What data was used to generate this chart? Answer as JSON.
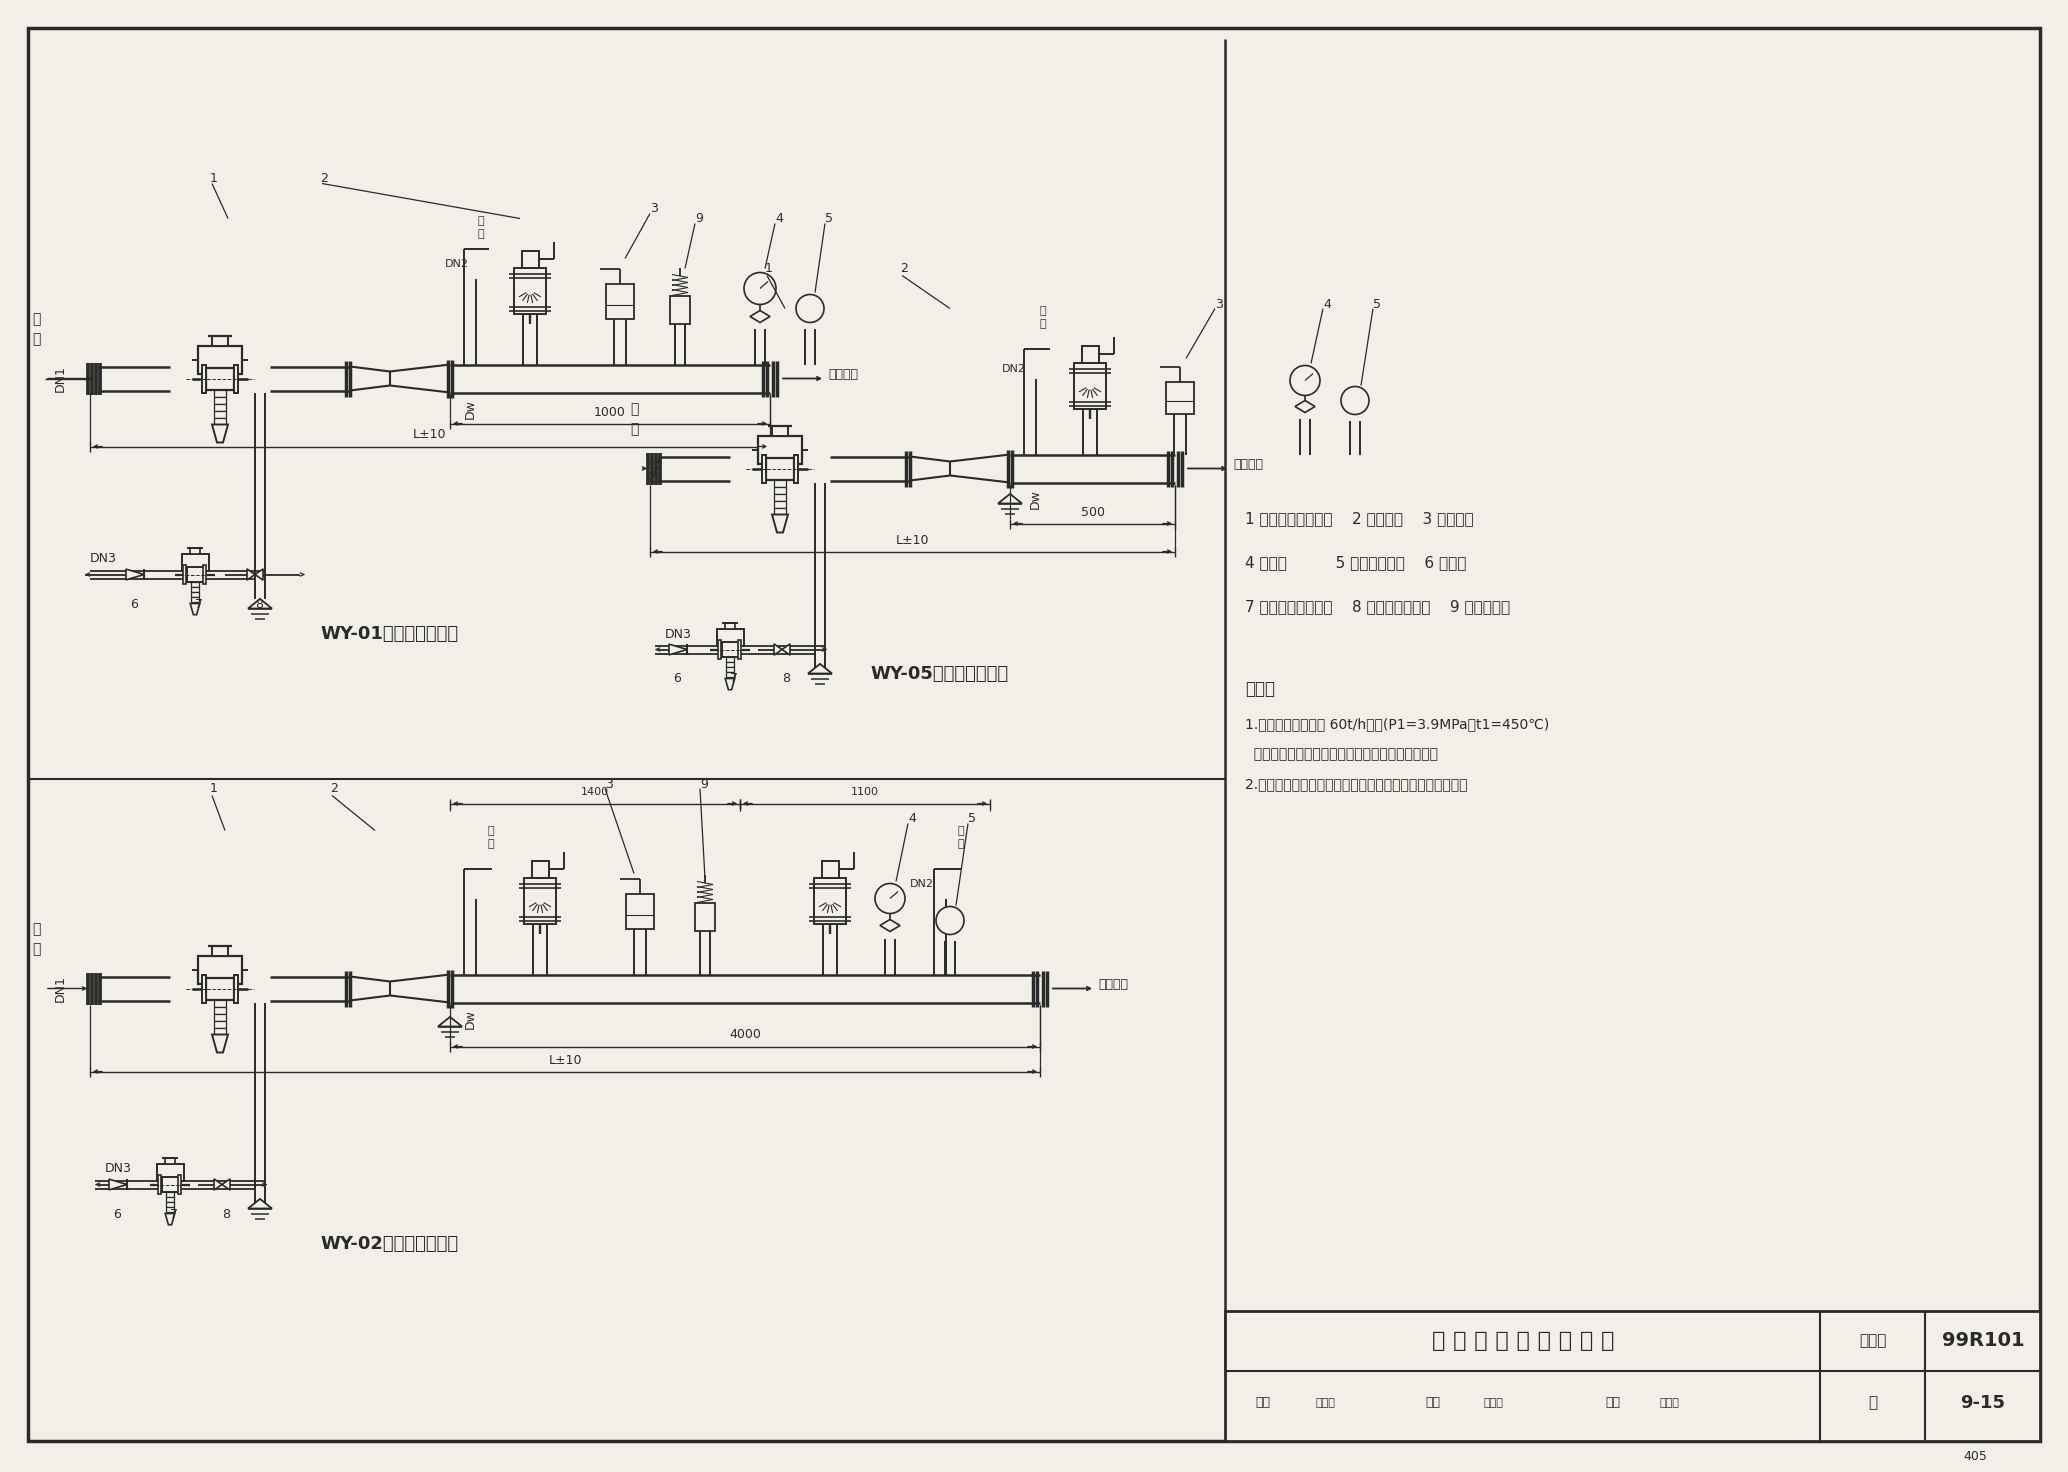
{
  "bg_color": "#f2efe9",
  "line_color": "#2a2a2a",
  "title_block": {
    "main_title": "减 温 减 压 装 置 安 装 图",
    "atlas_label": "图集号",
    "atlas_no": "99R101",
    "page_label": "页",
    "page_no": "9-15",
    "page_num": "405",
    "review": "审核",
    "check": "校对",
    "design": "设计",
    "reviewer": "汤承样",
    "checker": "王沂庆",
    "designer": "杭字僖"
  },
  "legend": [
    "1 直行程减温减压阀    2 蒸汽管道    3 主安全阀",
    "4 压力表          5 双金属温度计    6 止回阀",
    "7 直行程给水调节阀    8 节流阀，截止阀    9 冲量安全阀"
  ],
  "notes_title": "说明：",
  "notes": [
    "1.本图集只列出流量 60t/h以下(P1=3.9MPa，t1=450℃)",
    "  减温减压装置，超出部分请直接和生产厂家联系。",
    "2.本图按杭州华惠阀门有限公司杭州阀门厂产品样本编制。"
  ],
  "wy01_title": "WY-01型减温减压装置",
  "wy02_title": "WY-02型减温减压装置",
  "wy05_title": "WY-05型减温减压装置"
}
